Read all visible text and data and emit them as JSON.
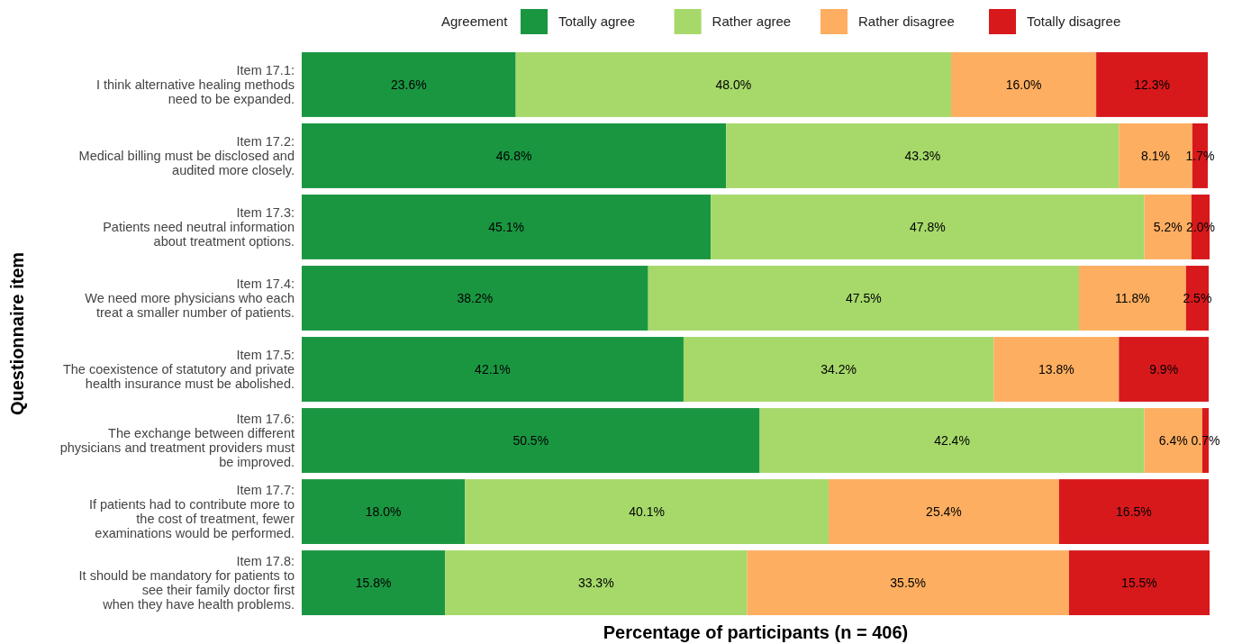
{
  "chart_data": {
    "type": "bar",
    "orientation": "horizontal",
    "stacked": true,
    "xlabel": "Percentage of participants (n = 406)",
    "ylabel": "Questionnaire item",
    "legend_title": "Agreement",
    "legend": "top",
    "grid": false,
    "tick_labels": "y",
    "categories": [
      "Item 17.1:\nI think alternative healing methods\nneed to be expanded.",
      "Item 17.2:\nMedical billing must be disclosed and\naudited more closely.",
      "Item 17.3:\nPatients need neutral information\nabout treatment options.",
      "Item 17.4:\nWe need more physicians who each\ntreat a smaller number of patients.",
      "Item 17.5:\nThe coexistence of statutory and private\nhealth insurance must be abolished.",
      "Item 17.6:\nThe exchange between different\nphysicians and treatment providers must\nbe improved.",
      "Item 17.7:\nIf patients had to contribute more to\nthe cost of treatment, fewer\nexaminations would be performed.",
      "Item 17.8:\nIt should be mandatory for patients to\nsee their family doctor first\nwhen they have health problems."
    ],
    "series": [
      {
        "name": "Totally agree",
        "color": "#1a9641",
        "values": [
          23.6,
          46.8,
          45.1,
          38.2,
          42.1,
          50.5,
          18.0,
          15.8
        ],
        "value_labels": [
          "23.6%",
          "46.8%",
          "45.1%",
          "38.2%",
          "42.1%",
          "50.5%",
          "18.0%",
          "15.8%"
        ]
      },
      {
        "name": "Rather agree",
        "color": "#a6d96a",
        "values": [
          48.0,
          43.3,
          47.8,
          47.5,
          34.2,
          42.4,
          40.1,
          33.3
        ],
        "value_labels": [
          "48.0%",
          "43.3%",
          "47.8%",
          "47.5%",
          "34.2%",
          "42.4%",
          "40.1%",
          "33.3%"
        ]
      },
      {
        "name": "Rather disagree",
        "color": "#fdae61",
        "values": [
          16.0,
          8.1,
          5.2,
          11.8,
          13.8,
          6.4,
          25.4,
          35.5
        ],
        "value_labels": [
          "16.0%",
          "8.1%",
          "5.2%",
          "11.8%",
          "13.8%",
          "6.4%",
          "25.4%",
          "35.5%"
        ]
      },
      {
        "name": "Totally disagree",
        "color": "#d7191c",
        "values": [
          12.3,
          1.7,
          2.0,
          2.5,
          9.9,
          0.7,
          16.5,
          15.5
        ],
        "value_labels": [
          "12.3%",
          "1.7%",
          "2.0%",
          "2.5%",
          "9.9%",
          "0.7%",
          "16.5%",
          "15.5%"
        ]
      }
    ]
  }
}
